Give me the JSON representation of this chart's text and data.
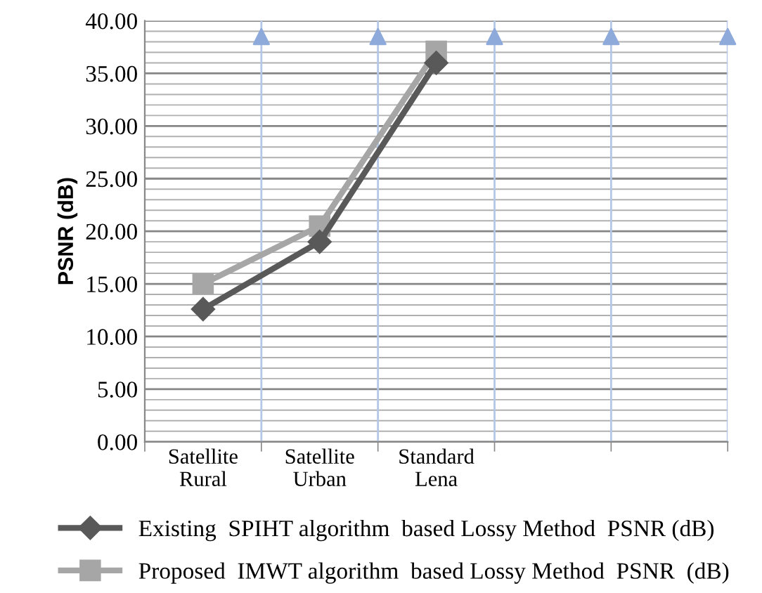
{
  "chart_data": {
    "type": "line",
    "ylabel": "PSNR (dB)",
    "categories": [
      "Satellite\nRural",
      "Satellite\nUrban",
      "Standard\nLena",
      null,
      null
    ],
    "series": [
      {
        "name": "Existing  SPIHT algorithm  based Lossy Method  PSNR (dB)",
        "color": "#595959",
        "marker": "diamond",
        "values": [
          12.6,
          19.0,
          36.0,
          null,
          null
        ]
      },
      {
        "name": "Proposed  IMWT algorithm  based Lossy Method  PSNR  (dB)",
        "color": "#a6a6a6",
        "marker": "square",
        "values": [
          15.0,
          20.5,
          37.1,
          null,
          null
        ]
      }
    ],
    "ylim": [
      0,
      40
    ],
    "yticks": [
      {
        "value": 0,
        "label": "0.00"
      },
      {
        "value": 5,
        "label": "5.00"
      },
      {
        "value": 10,
        "label": "10.00"
      },
      {
        "value": 15,
        "label": "15.00"
      },
      {
        "value": 20,
        "label": "20.00"
      },
      {
        "value": 25,
        "label": "25.00"
      },
      {
        "value": 30,
        "label": "30.00"
      },
      {
        "value": 35,
        "label": "35.00"
      },
      {
        "value": 40,
        "label": "40.00"
      }
    ],
    "grid": true,
    "legend": "bottom",
    "line_style": "solid"
  }
}
